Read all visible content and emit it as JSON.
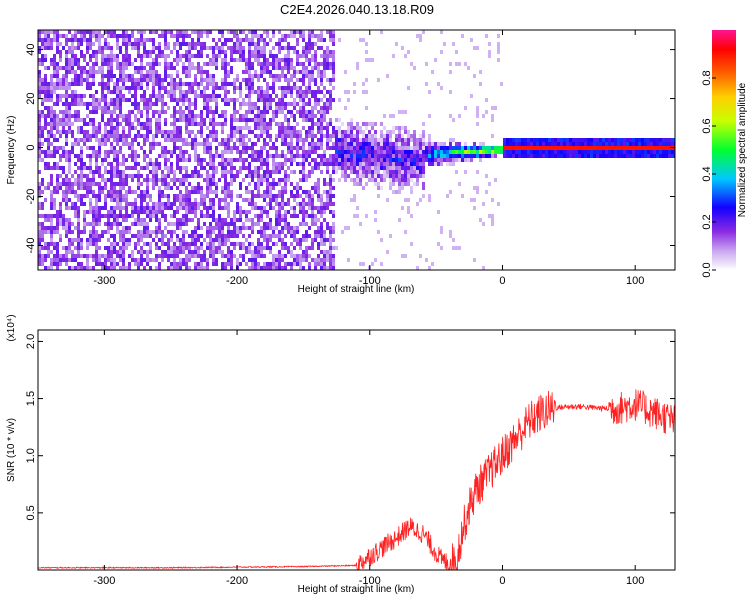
{
  "title": "C2E4.2026.040.13.18.R09",
  "chart_data": [
    {
      "type": "heatmap",
      "xlabel": "Height of straight line (km)",
      "ylabel": "Frequency (Hz)",
      "xlim": [
        -350,
        130
      ],
      "ylim": [
        -50,
        48
      ],
      "xticks": [
        -300,
        -200,
        -100,
        0,
        100
      ],
      "yticks": [
        -40,
        -20,
        0,
        20,
        40
      ],
      "colorbar": {
        "label": "Normalized spectral amplitude",
        "range": [
          0,
          1
        ],
        "ticks": [
          "0.0",
          "0.2",
          "0.4",
          "0.6",
          "0.8"
        ],
        "colors": [
          "#ffffff",
          "#8a2be2",
          "#0000ff",
          "#00c8ff",
          "#00ff00",
          "#ffff00",
          "#ff8000",
          "#ff0000",
          "#ff1493"
        ]
      },
      "regions": [
        {
          "x": [
            -350,
            -128
          ],
          "freq": [
            -50,
            48
          ],
          "amplitude": 0.1
        },
        {
          "x": [
            -128,
            -40
          ],
          "freq": [
            -15,
            15
          ],
          "amplitude": 0.3
        },
        {
          "x": [
            -40,
            0
          ],
          "freq": [
            -5,
            5
          ],
          "amplitude": 0.55
        },
        {
          "x": [
            0,
            130
          ],
          "freq": [
            -1,
            1
          ],
          "amplitude": 0.9
        }
      ]
    },
    {
      "type": "line",
      "xlabel": "Height of straight line (km)",
      "ylabel": "SNR (10 * v/v)",
      "yscale_label": "(x10⁴)",
      "xlim": [
        -350,
        130
      ],
      "ylim": [
        0,
        2.1
      ],
      "xticks": [
        -300,
        -200,
        -100,
        0,
        100
      ],
      "yticks": [
        "0.5",
        "1.0",
        "1.5",
        "2.0"
      ],
      "series": [
        {
          "color": "#ff2020",
          "x": [
            -350,
            -250,
            -150,
            -110,
            -100,
            -90,
            -80,
            -70,
            -60,
            -50,
            -45,
            -40,
            -35,
            -30,
            -25,
            -20,
            -10,
            0,
            10,
            20,
            30,
            40,
            50,
            60,
            70,
            80,
            90,
            100,
            110,
            120,
            130
          ],
          "y": [
            0.02,
            0.02,
            0.03,
            0.04,
            0.12,
            0.2,
            0.28,
            0.38,
            0.32,
            0.15,
            0.08,
            0.06,
            0.08,
            0.35,
            0.55,
            0.7,
            0.85,
            1.0,
            1.15,
            1.3,
            1.38,
            1.42,
            1.43,
            1.43,
            1.42,
            1.41,
            1.42,
            1.45,
            1.4,
            1.35,
            1.3
          ]
        }
      ]
    }
  ]
}
